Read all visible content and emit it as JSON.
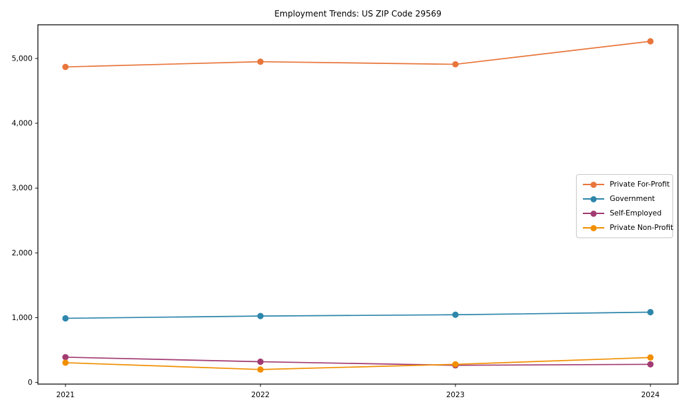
{
  "chart_data": {
    "type": "line",
    "title": "Employment Trends: US ZIP Code 29569",
    "x_categories": [
      "2021",
      "2022",
      "2023",
      "2024"
    ],
    "series": [
      {
        "name": "Private For-Profit",
        "color": "#E8763C",
        "values": [
          4870,
          4950,
          4910,
          5265
        ]
      },
      {
        "name": "Government",
        "color": "#2E86AB",
        "values": [
          990,
          1025,
          1045,
          1085
        ]
      },
      {
        "name": "Self-Employed",
        "color": "#A23B72",
        "values": [
          390,
          320,
          265,
          280
        ]
      },
      {
        "name": "Private Non-Profit",
        "color": "#F18F01",
        "values": [
          305,
          200,
          280,
          385
        ]
      }
    ],
    "yticks": [
      {
        "value": 0,
        "label": "0"
      },
      {
        "value": 1000,
        "label": "1,000"
      },
      {
        "value": 2000,
        "label": "2,000"
      },
      {
        "value": 3000,
        "label": "3,000"
      },
      {
        "value": 4000,
        "label": "4,000"
      },
      {
        "value": 5000,
        "label": "5,000"
      }
    ],
    "ylim": [
      -25,
      5520
    ],
    "xlabel": "",
    "ylabel": "",
    "grid": "off",
    "legend_position": "center right",
    "axis_color": "#000000",
    "background_color": "#ffffff"
  }
}
